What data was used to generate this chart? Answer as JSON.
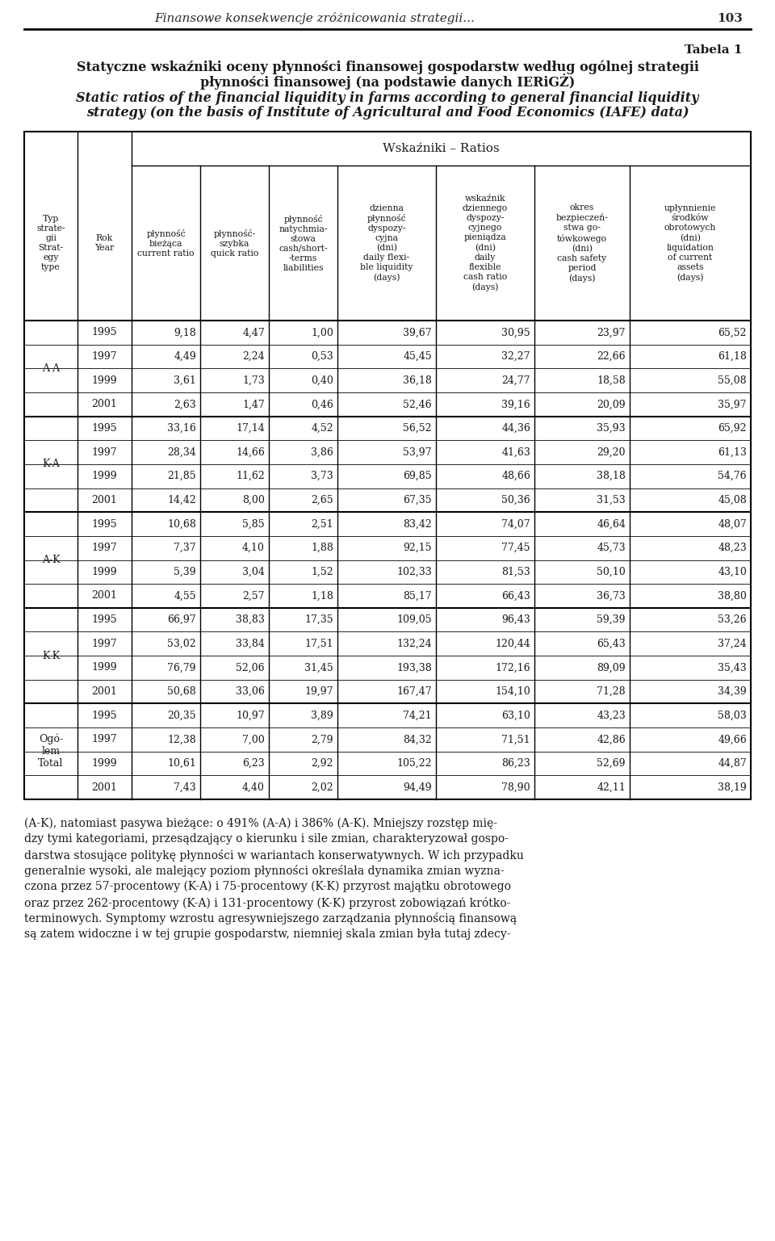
{
  "page_header": "Finansowe konsekwencje zróżnicowania strategii...",
  "page_number": "103",
  "table_label": "Tabela 1",
  "title_pl_line1": "Statyczne wskaźniki oceny płynności finansowej gospodarstw według ogólnej strategii",
  "title_pl_line2": "płynności finansowej (na podstawie danych IERiGŻ)",
  "title_en_line1": "Static ratios of the financial liquidity in farms according to general financial liquidity",
  "title_en_line2": "strategy (on the basis of Institute of Agricultural and Food Economics (IAFE) data)",
  "wskazniki_header": "Wskaźniki – Ratios",
  "col0_header": "Typ\nstrate-\ngii\nStrat-\negy\ntype",
  "col1_header": "Rok\nYear",
  "col2_header": "płynność\nbieżąca\ncurrent ratio",
  "col3_header": "płynność-\nszybka\nquick ratio",
  "col4_header": "płynność\nnatychmia-\nstowa\ncash/short-\n-terms\nliabilities",
  "col5_header": "dzienna\npłynność\ndyspozy-\ncyjna\n(dni)\ndaily flexi-\nble liquidity\n(days)",
  "col6_header": "wskaźnik\ndziennego\ndyspozy-\ncyjnego\npieniądza\n(dni)\ndaily\nflexible\ncash ratio\n(days)",
  "col7_header": "okres\nbezpieczeń-\nstwa go-\ntówkowego\n(dni)\ncash safety\nperiod\n(days)",
  "col8_header": "upłynnienie\nśrodków\nobrotowych\n(dni)\nliquidation\nof current\nassets\n(days)",
  "groups": [
    {
      "label": "A-A",
      "rows": [
        [
          "1995",
          "9,18",
          "4,47",
          "1,00",
          "39,67",
          "30,95",
          "23,97",
          "65,52"
        ],
        [
          "1997",
          "4,49",
          "2,24",
          "0,53",
          "45,45",
          "32,27",
          "22,66",
          "61,18"
        ],
        [
          "1999",
          "3,61",
          "1,73",
          "0,40",
          "36,18",
          "24,77",
          "18,58",
          "55,08"
        ],
        [
          "2001",
          "2,63",
          "1,47",
          "0,46",
          "52,46",
          "39,16",
          "20,09",
          "35,97"
        ]
      ]
    },
    {
      "label": "K-A",
      "rows": [
        [
          "1995",
          "33,16",
          "17,14",
          "4,52",
          "56,52",
          "44,36",
          "35,93",
          "65,92"
        ],
        [
          "1997",
          "28,34",
          "14,66",
          "3,86",
          "53,97",
          "41,63",
          "29,20",
          "61,13"
        ],
        [
          "1999",
          "21,85",
          "11,62",
          "3,73",
          "69,85",
          "48,66",
          "38,18",
          "54,76"
        ],
        [
          "2001",
          "14,42",
          "8,00",
          "2,65",
          "67,35",
          "50,36",
          "31,53",
          "45,08"
        ]
      ]
    },
    {
      "label": "A-K",
      "rows": [
        [
          "1995",
          "10,68",
          "5,85",
          "2,51",
          "83,42",
          "74,07",
          "46,64",
          "48,07"
        ],
        [
          "1997",
          "7,37",
          "4,10",
          "1,88",
          "92,15",
          "77,45",
          "45,73",
          "48,23"
        ],
        [
          "1999",
          "5,39",
          "3,04",
          "1,52",
          "102,33",
          "81,53",
          "50,10",
          "43,10"
        ],
        [
          "2001",
          "4,55",
          "2,57",
          "1,18",
          "85,17",
          "66,43",
          "36,73",
          "38,80"
        ]
      ]
    },
    {
      "label": "K-K",
      "rows": [
        [
          "1995",
          "66,97",
          "38,83",
          "17,35",
          "109,05",
          "96,43",
          "59,39",
          "53,26"
        ],
        [
          "1997",
          "53,02",
          "33,84",
          "17,51",
          "132,24",
          "120,44",
          "65,43",
          "37,24"
        ],
        [
          "1999",
          "76,79",
          "52,06",
          "31,45",
          "193,38",
          "172,16",
          "89,09",
          "35,43"
        ],
        [
          "2001",
          "50,68",
          "33,06",
          "19,97",
          "167,47",
          "154,10",
          "71,28",
          "34,39"
        ]
      ]
    },
    {
      "label": "Ogó-\nlem\nTotal",
      "rows": [
        [
          "1995",
          "20,35",
          "10,97",
          "3,89",
          "74,21",
          "63,10",
          "43,23",
          "58,03"
        ],
        [
          "1997",
          "12,38",
          "7,00",
          "2,79",
          "84,32",
          "71,51",
          "42,86",
          "49,66"
        ],
        [
          "1999",
          "10,61",
          "6,23",
          "2,92",
          "105,22",
          "86,23",
          "52,69",
          "44,87"
        ],
        [
          "2001",
          "7,43",
          "4,40",
          "2,02",
          "94,49",
          "78,90",
          "42,11",
          "38,19"
        ]
      ]
    }
  ],
  "footer_lines": [
    "(A-K), natomiast pasywa bieżące: o 491% (A-A) i 386% (A-K). Mniejszy rozstęp mię-",
    "dzy tymi kategoriami, przesądzający o kierunku i sile zmian, charakteryzował gospo-",
    "darstwa stosujące politykę płynności w wariantach konserwatywnych. W ich przypadku",
    "generalnie wysoki, ale malejący poziom płynności określała dynamika zmian wyzna-",
    "czona przez 57-procentowy (K-A) i 75-procentowy (K-K) przyrost majątku obrotowego",
    "oraz przez 262-procentowy (K-A) i 131-procentowy (K-K) przyrost zobowiązań krótko-",
    "terminowych. Symptomy wzrostu agresywniejszego zarządzania płynnością finansową",
    "są zatem widoczne i w tej grupie gospodarstw, niemniej skala zmian była tutaj zdecy-"
  ]
}
